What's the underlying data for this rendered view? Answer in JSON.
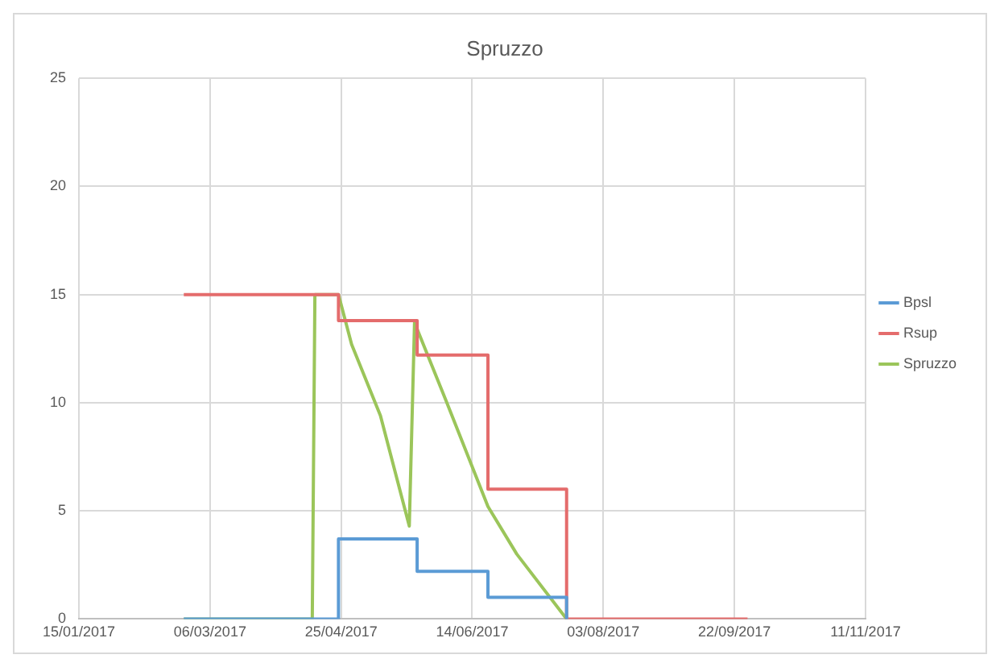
{
  "chart_data": {
    "type": "line",
    "title": "Spruzzo",
    "xlim": [
      "2017-01-15",
      "2017-11-11"
    ],
    "xticks": [
      {
        "value": "2017-01-15",
        "label": "15/01/2017"
      },
      {
        "value": "2017-03-06",
        "label": "06/03/2017"
      },
      {
        "value": "2017-04-25",
        "label": "25/04/2017"
      },
      {
        "value": "2017-06-14",
        "label": "14/06/2017"
      },
      {
        "value": "2017-08-03",
        "label": "03/08/2017"
      },
      {
        "value": "2017-09-22",
        "label": "22/09/2017"
      },
      {
        "value": "2017-11-11",
        "label": "11/11/2017"
      }
    ],
    "ylim": [
      0,
      25
    ],
    "yticks": [
      0,
      5,
      10,
      15,
      20,
      25
    ],
    "grid": true,
    "legend": "right",
    "marker": "none",
    "line_style": "solid",
    "series": [
      {
        "name": "Bpsl",
        "color": "#5b9bd5",
        "x": [
          "2017-02-24",
          "2017-04-24",
          "2017-04-24",
          "2017-05-24",
          "2017-05-24",
          "2017-06-20",
          "2017-06-20",
          "2017-07-20",
          "2017-07-20"
        ],
        "values": [
          0,
          0,
          3.7,
          3.7,
          2.2,
          2.2,
          1.0,
          1.0,
          0
        ]
      },
      {
        "name": "Rsup",
        "color": "#e46c6c",
        "x": [
          "2017-02-24",
          "2017-04-24",
          "2017-04-24",
          "2017-05-24",
          "2017-05-24",
          "2017-06-20",
          "2017-06-20",
          "2017-07-20",
          "2017-07-20",
          "2017-09-27"
        ],
        "values": [
          15,
          15,
          13.8,
          13.8,
          12.2,
          12.2,
          6,
          6,
          0,
          0
        ]
      },
      {
        "name": "Spruzzo",
        "color": "#9bc55a",
        "x": [
          "2017-02-24",
          "2017-04-14",
          "2017-04-15",
          "2017-04-24",
          "2017-04-29",
          "2017-05-10",
          "2017-05-21",
          "2017-05-23",
          "2017-06-04",
          "2017-06-20",
          "2017-07-01",
          "2017-07-20"
        ],
        "values": [
          0,
          0,
          15,
          15,
          12.7,
          9.4,
          4.3,
          13.7,
          10.1,
          5.2,
          3.0,
          0
        ]
      }
    ]
  }
}
